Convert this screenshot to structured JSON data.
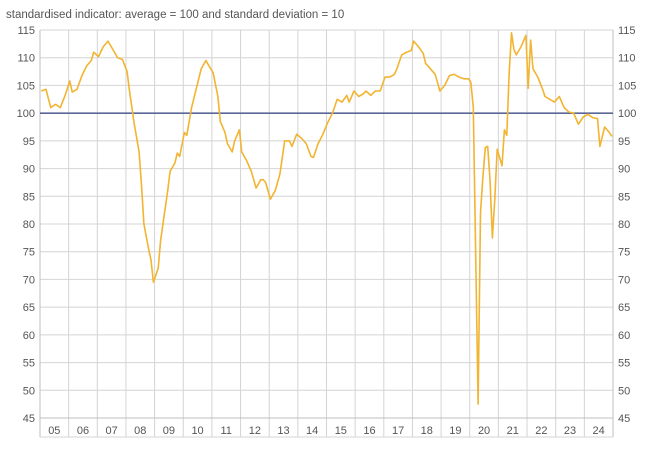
{
  "chart_data": {
    "type": "line",
    "subtitle": "standardised indicator: average = 100 and standard deviation = 10",
    "xlabel": "",
    "ylabel": "",
    "ylim": [
      45,
      115
    ],
    "yticks": [
      45,
      50,
      55,
      60,
      65,
      70,
      75,
      80,
      85,
      90,
      95,
      100,
      105,
      110,
      115
    ],
    "categories": [
      "05",
      "06",
      "07",
      "08",
      "09",
      "10",
      "11",
      "12",
      "13",
      "14",
      "15",
      "16",
      "17",
      "18",
      "19",
      "20",
      "21",
      "22",
      "23",
      "24"
    ],
    "x_range": [
      "2005-01",
      "2024-12"
    ],
    "grid": true,
    "legend": "none",
    "reference_line": {
      "value": 100,
      "color": "#5a6796"
    },
    "series": [
      {
        "color": "#f2b431",
        "points": [
          [
            "2005-01",
            104.0
          ],
          [
            "2005-03",
            104.3
          ],
          [
            "2005-05",
            101.0
          ],
          [
            "2005-07",
            101.6
          ],
          [
            "2005-09",
            101.0
          ],
          [
            "2005-11",
            103.2
          ],
          [
            "2006-01",
            105.8
          ],
          [
            "2006-02",
            103.8
          ],
          [
            "2006-04",
            104.3
          ],
          [
            "2006-06",
            106.7
          ],
          [
            "2006-08",
            108.5
          ],
          [
            "2006-10",
            109.5
          ],
          [
            "2006-11",
            111.0
          ],
          [
            "2007-01",
            110.2
          ],
          [
            "2007-03",
            112.0
          ],
          [
            "2007-05",
            113.0
          ],
          [
            "2007-07",
            111.5
          ],
          [
            "2007-09",
            110.0
          ],
          [
            "2007-11",
            109.7
          ],
          [
            "2008-01",
            107.5
          ],
          [
            "2008-02",
            104.0
          ],
          [
            "2008-04",
            98.0
          ],
          [
            "2008-06",
            93.0
          ],
          [
            "2008-07",
            87.0
          ],
          [
            "2008-08",
            80.0
          ],
          [
            "2008-10",
            75.5
          ],
          [
            "2008-11",
            73.5
          ],
          [
            "2008-12",
            69.5
          ],
          [
            "2009-02",
            72.0
          ],
          [
            "2009-03",
            77.0
          ],
          [
            "2009-05",
            83.0
          ],
          [
            "2009-06",
            86.0
          ],
          [
            "2009-07",
            89.5
          ],
          [
            "2009-09",
            91.0
          ],
          [
            "2009-10",
            92.8
          ],
          [
            "2009-11",
            92.2
          ],
          [
            "2010-01",
            96.5
          ],
          [
            "2010-02",
            96.0
          ],
          [
            "2010-04",
            101.0
          ],
          [
            "2010-06",
            104.5
          ],
          [
            "2010-08",
            108.0
          ],
          [
            "2010-10",
            109.5
          ],
          [
            "2010-12",
            108.0
          ],
          [
            "2011-01",
            107.3
          ],
          [
            "2011-03",
            103.0
          ],
          [
            "2011-04",
            98.5
          ],
          [
            "2011-06",
            96.5
          ],
          [
            "2011-07",
            94.5
          ],
          [
            "2011-09",
            93.0
          ],
          [
            "2011-10",
            95.0
          ],
          [
            "2011-12",
            97.0
          ],
          [
            "2012-01",
            93.0
          ],
          [
            "2012-03",
            91.5
          ],
          [
            "2012-05",
            89.5
          ],
          [
            "2012-06",
            88.0
          ],
          [
            "2012-07",
            86.5
          ],
          [
            "2012-09",
            88.0
          ],
          [
            "2012-10",
            88.0
          ],
          [
            "2012-11",
            87.5
          ],
          [
            "2013-01",
            84.5
          ],
          [
            "2013-03",
            86.0
          ],
          [
            "2013-05",
            89.0
          ],
          [
            "2013-07",
            95.0
          ],
          [
            "2013-09",
            95.0
          ],
          [
            "2013-10",
            94.0
          ],
          [
            "2013-12",
            96.2
          ],
          [
            "2014-02",
            95.5
          ],
          [
            "2014-04",
            94.5
          ],
          [
            "2014-06",
            92.2
          ],
          [
            "2014-07",
            92.0
          ],
          [
            "2014-09",
            94.5
          ],
          [
            "2014-11",
            96.2
          ],
          [
            "2015-01",
            98.3
          ],
          [
            "2015-03",
            100.0
          ],
          [
            "2015-05",
            102.5
          ],
          [
            "2015-07",
            102.0
          ],
          [
            "2015-09",
            103.2
          ],
          [
            "2015-10",
            102.0
          ],
          [
            "2015-12",
            104.0
          ],
          [
            "2016-02",
            103.0
          ],
          [
            "2016-04",
            103.5
          ],
          [
            "2016-05",
            104.0
          ],
          [
            "2016-07",
            103.2
          ],
          [
            "2016-09",
            104.0
          ],
          [
            "2016-11",
            104.0
          ],
          [
            "2017-01",
            106.5
          ],
          [
            "2017-03",
            106.5
          ],
          [
            "2017-05",
            107.0
          ],
          [
            "2017-06",
            108.0
          ],
          [
            "2017-08",
            110.5
          ],
          [
            "2017-10",
            111.0
          ],
          [
            "2017-12",
            111.3
          ],
          [
            "2018-01",
            113.0
          ],
          [
            "2018-03",
            112.0
          ],
          [
            "2018-05",
            110.8
          ],
          [
            "2018-06",
            109.0
          ],
          [
            "2018-08",
            108.0
          ],
          [
            "2018-10",
            107.0
          ],
          [
            "2018-12",
            104.0
          ],
          [
            "2019-02",
            105.0
          ],
          [
            "2019-04",
            106.8
          ],
          [
            "2019-06",
            107.0
          ],
          [
            "2019-08",
            106.5
          ],
          [
            "2019-10",
            106.2
          ],
          [
            "2019-12",
            106.2
          ],
          [
            "2020-01",
            105.5
          ],
          [
            "2020-02",
            101.0
          ],
          [
            "2020-04",
            47.5
          ],
          [
            "2020-05",
            82.0
          ],
          [
            "2020-06",
            88.5
          ],
          [
            "2020-07",
            93.8
          ],
          [
            "2020-08",
            94.0
          ],
          [
            "2020-09",
            88.0
          ],
          [
            "2020-10",
            77.5
          ],
          [
            "2020-11",
            84.5
          ],
          [
            "2020-12",
            93.5
          ],
          [
            "2021-01",
            92.0
          ],
          [
            "2021-02",
            90.5
          ],
          [
            "2021-03",
            97.0
          ],
          [
            "2021-04",
            96.0
          ],
          [
            "2021-05",
            107.0
          ],
          [
            "2021-06",
            114.5
          ],
          [
            "2021-07",
            111.5
          ],
          [
            "2021-08",
            110.5
          ],
          [
            "2021-10",
            112.0
          ],
          [
            "2021-12",
            114.0
          ],
          [
            "2022-01",
            104.5
          ],
          [
            "2022-02",
            113.2
          ],
          [
            "2022-03",
            108.0
          ],
          [
            "2022-05",
            106.5
          ],
          [
            "2022-07",
            104.3
          ],
          [
            "2022-08",
            103.0
          ],
          [
            "2022-10",
            102.5
          ],
          [
            "2022-12",
            102.0
          ],
          [
            "2023-02",
            103.0
          ],
          [
            "2023-04",
            101.0
          ],
          [
            "2023-06",
            100.2
          ],
          [
            "2023-08",
            100.0
          ],
          [
            "2023-10",
            98.0
          ],
          [
            "2023-12",
            99.3
          ],
          [
            "2024-02",
            99.8
          ],
          [
            "2024-04",
            99.2
          ],
          [
            "2024-06",
            99.0
          ],
          [
            "2024-07",
            94.0
          ],
          [
            "2024-09",
            97.5
          ],
          [
            "2024-11",
            96.5
          ],
          [
            "2024-12",
            95.8
          ]
        ]
      }
    ]
  }
}
